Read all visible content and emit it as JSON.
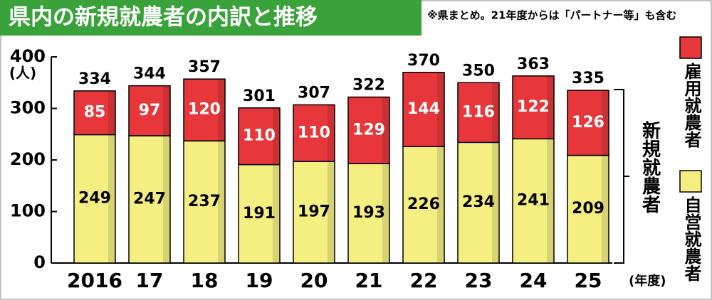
{
  "chart_data": {
    "type": "stacked-bar",
    "title": "県内の新規就農者の内訳と推移",
    "note": "※県まとめ。21年度からは「パートナー等」も含む",
    "y_unit": "(人)",
    "x_unit": "(年度)",
    "bracket_label": "新規就農者",
    "categories": [
      "2016",
      "17",
      "18",
      "19",
      "20",
      "21",
      "22",
      "23",
      "24",
      "25"
    ],
    "series": [
      {
        "name": "自営就農者",
        "color": "#f5ef82",
        "values": [
          249,
          247,
          237,
          191,
          197,
          193,
          226,
          234,
          241,
          209
        ]
      },
      {
        "name": "雇用就農者",
        "color": "#e8373a",
        "values": [
          85,
          97,
          120,
          110,
          110,
          129,
          144,
          116,
          122,
          126
        ]
      }
    ],
    "totals": [
      334,
      344,
      357,
      301,
      307,
      322,
      370,
      350,
      363,
      335
    ],
    "ylim": [
      0,
      400
    ],
    "yticks": [
      0,
      100,
      200,
      300,
      400
    ]
  }
}
